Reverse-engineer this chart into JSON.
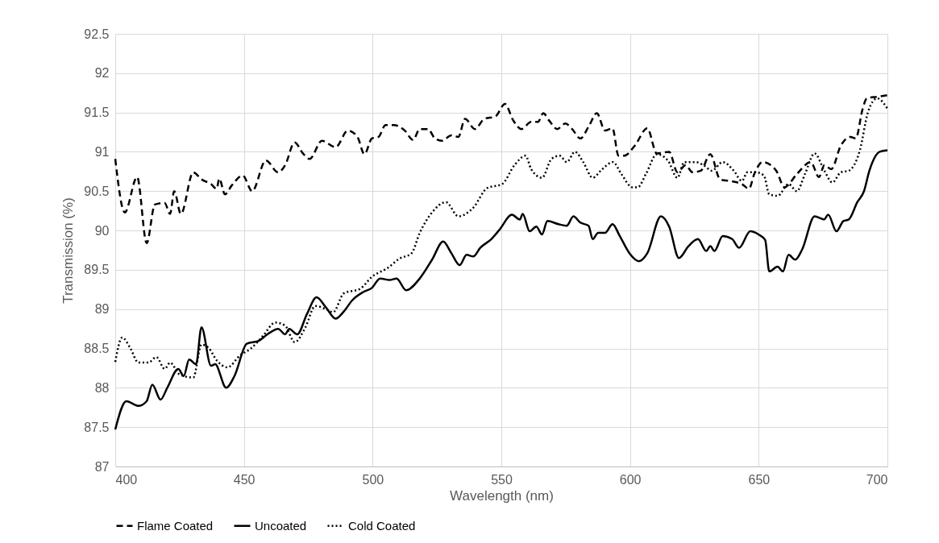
{
  "chart_data": {
    "type": "line",
    "xlabel": "Wavelength (nm)",
    "ylabel": "Transmission (%)",
    "xlim": [
      400,
      700
    ],
    "xticks": [
      400,
      450,
      500,
      550,
      600,
      650,
      700
    ],
    "ylim": [
      87,
      92.5
    ],
    "yticks": [
      87,
      87.5,
      88,
      88.5,
      89,
      89.5,
      90,
      90.5,
      91,
      91.5,
      92,
      92.5
    ],
    "grid": true,
    "legend": "bottom",
    "marker": "none",
    "series": [
      {
        "name": "Flame Coated",
        "color": "#000000",
        "line_style": "dashed",
        "x": [
          400,
          403.7,
          408.5,
          412.2,
          415.4,
          419.2,
          421.3,
          422.9,
          425.5,
          430.3,
          433.5,
          437.2,
          439.4,
          440.4,
          442.6,
          445.2,
          449.5,
          453.2,
          458.5,
          463.3,
          466,
          469.7,
          472.9,
          475.5,
          480.3,
          485.6,
          490.4,
          494.1,
          496.8,
          499.7,
          502.3,
          505,
          508.2,
          512.5,
          515.7,
          518.3,
          521.5,
          524.2,
          526.9,
          530.6,
          533.3,
          535.9,
          539.7,
          543.4,
          547.7,
          551.4,
          554.6,
          557.8,
          561.6,
          564.2,
          566.3,
          568.5,
          571.7,
          574.9,
          577.5,
          580.7,
          583.9,
          587.1,
          590.3,
          593.2,
          595.5,
          597.7,
          601.9,
          606.7,
          610.4,
          615.2,
          618.4,
          621.6,
          624.3,
          627.5,
          631.2,
          635,
          638.7,
          643.5,
          646.2,
          648.3,
          651.5,
          656.8,
          660,
          664.9,
          670.2,
          673.4,
          675.5,
          678.2,
          681.9,
          685.6,
          687.7,
          690.4,
          692,
          696,
          700
        ],
        "values": [
          90.91,
          90.23,
          90.68,
          89.84,
          90.33,
          90.35,
          90.21,
          90.5,
          90.21,
          90.74,
          90.65,
          90.59,
          90.53,
          90.66,
          90.46,
          90.57,
          90.7,
          90.5,
          90.89,
          90.74,
          90.83,
          91.12,
          90.98,
          90.91,
          91.14,
          91.06,
          91.27,
          91.19,
          90.97,
          91.17,
          91.19,
          91.34,
          91.34,
          91.27,
          91.15,
          91.29,
          91.29,
          91.17,
          91.14,
          91.21,
          91.19,
          91.42,
          91.29,
          91.42,
          91.45,
          91.61,
          91.4,
          91.29,
          91.38,
          91.38,
          91.49,
          91.4,
          91.29,
          91.36,
          91.29,
          91.17,
          91.32,
          91.49,
          91.27,
          91.3,
          90.95,
          90.95,
          91.08,
          91.3,
          90.98,
          91.0,
          90.74,
          90.83,
          90.74,
          90.76,
          90.97,
          90.65,
          90.63,
          90.59,
          90.53,
          90.72,
          90.87,
          90.76,
          90.55,
          90.72,
          90.87,
          90.68,
          90.83,
          90.78,
          91.08,
          91.19,
          91.17,
          91.55,
          91.68,
          91.7,
          91.72
        ]
      },
      {
        "name": "Uncoated",
        "color": "#000000",
        "line_style": "solid",
        "x": [
          400,
          404.3,
          409,
          412.2,
          414.4,
          417.6,
          420.2,
          424.5,
          426.6,
          428.7,
          431.4,
          433.5,
          437.2,
          438.8,
          443.1,
          446.3,
          451.1,
          455.9,
          459.1,
          463.3,
          466,
          467.6,
          470.7,
          474.5,
          478.2,
          481.9,
          485.6,
          488.8,
          492,
          496.5,
          499.7,
          502.9,
          506.6,
          509.3,
          513,
          518.3,
          523.1,
          527.4,
          530.6,
          533.8,
          536.5,
          539.1,
          541.8,
          546.1,
          549.3,
          554.1,
          557.2,
          558.3,
          561,
          563.6,
          565.8,
          567.9,
          572.2,
          575.4,
          578,
          580.7,
          583.9,
          585.5,
          587.6,
          590.3,
          593.2,
          596,
          599.8,
          603.5,
          606.7,
          612,
          615.2,
          619,
          622.7,
          626.4,
          629.6,
          631.2,
          632.8,
          636,
          639.7,
          642.4,
          646.7,
          649.9,
          652.5,
          654.1,
          657.3,
          659.4,
          661.6,
          664.2,
          666.9,
          671.7,
          675.4,
          677,
          680.2,
          682.9,
          685,
          688.3,
          690.9,
          693,
          697,
          700
        ],
        "values": [
          87.47,
          87.83,
          87.77,
          87.83,
          88.04,
          87.85,
          88.0,
          88.24,
          88.15,
          88.36,
          88.3,
          88.77,
          88.28,
          88.3,
          88.0,
          88.15,
          88.56,
          88.6,
          88.68,
          88.75,
          88.68,
          88.75,
          88.68,
          88.94,
          89.15,
          89.02,
          88.88,
          88.97,
          89.11,
          89.22,
          89.27,
          89.39,
          89.37,
          89.39,
          89.24,
          89.39,
          89.63,
          89.86,
          89.71,
          89.56,
          89.69,
          89.67,
          89.78,
          89.89,
          90.01,
          90.2,
          90.14,
          90.21,
          89.99,
          90.05,
          89.95,
          90.12,
          90.08,
          90.06,
          90.18,
          90.1,
          90.06,
          89.89,
          89.97,
          89.97,
          90.08,
          89.93,
          89.71,
          89.61,
          89.71,
          90.18,
          90.05,
          89.65,
          89.8,
          89.89,
          89.74,
          89.8,
          89.74,
          89.93,
          89.89,
          89.78,
          89.99,
          89.95,
          89.88,
          89.48,
          89.54,
          89.48,
          89.69,
          89.63,
          89.76,
          90.18,
          90.14,
          90.2,
          89.99,
          90.12,
          90.14,
          90.36,
          90.5,
          90.76,
          91.0,
          91.02
        ]
      },
      {
        "name": "Cold Coated",
        "color": "#000000",
        "line_style": "dotted",
        "x": [
          400,
          402.7,
          405.9,
          409,
          412.8,
          416,
          419.2,
          421.3,
          425,
          430.3,
          433.5,
          436.2,
          439.4,
          443.6,
          448.4,
          452.7,
          457.4,
          462.2,
          466,
          469.7,
          473.9,
          477.7,
          481.9,
          484.6,
          488.8,
          495.2,
          499.7,
          506.1,
          510.3,
          515.1,
          518.3,
          523.1,
          528.5,
          533.3,
          539.1,
          544.5,
          550.3,
          555.1,
          559.4,
          561.6,
          565.8,
          569.5,
          572.7,
          575.4,
          578.6,
          581.8,
          585.5,
          589.2,
          593.4,
          596.6,
          600.9,
          603,
          606.2,
          610.4,
          614.7,
          618.4,
          621.1,
          625.4,
          628.6,
          631.8,
          636,
          640.3,
          643.5,
          645.6,
          648.8,
          652,
          654.1,
          657.3,
          661.6,
          664.8,
          668,
          671.7,
          675.5,
          678.6,
          681.9,
          685,
          689.3,
          692.5,
          696,
          700
        ],
        "values": [
          88.33,
          88.64,
          88.5,
          88.32,
          88.32,
          88.39,
          88.24,
          88.32,
          88.17,
          88.13,
          88.55,
          88.51,
          88.35,
          88.26,
          88.41,
          88.5,
          88.66,
          88.83,
          88.79,
          88.58,
          88.77,
          89.04,
          89.0,
          88.96,
          89.2,
          89.26,
          89.41,
          89.53,
          89.64,
          89.71,
          89.97,
          90.23,
          90.36,
          90.18,
          90.29,
          90.54,
          90.59,
          90.83,
          90.95,
          90.78,
          90.67,
          90.91,
          90.95,
          90.87,
          91.0,
          90.87,
          90.67,
          90.78,
          90.87,
          90.72,
          90.55,
          90.55,
          90.72,
          90.97,
          90.89,
          90.67,
          90.87,
          90.87,
          90.83,
          90.76,
          90.87,
          90.76,
          90.63,
          90.74,
          90.74,
          90.7,
          90.46,
          90.44,
          90.59,
          90.5,
          90.72,
          90.98,
          90.76,
          90.61,
          90.74,
          90.76,
          91.02,
          91.51,
          91.68,
          91.55
        ]
      }
    ]
  }
}
